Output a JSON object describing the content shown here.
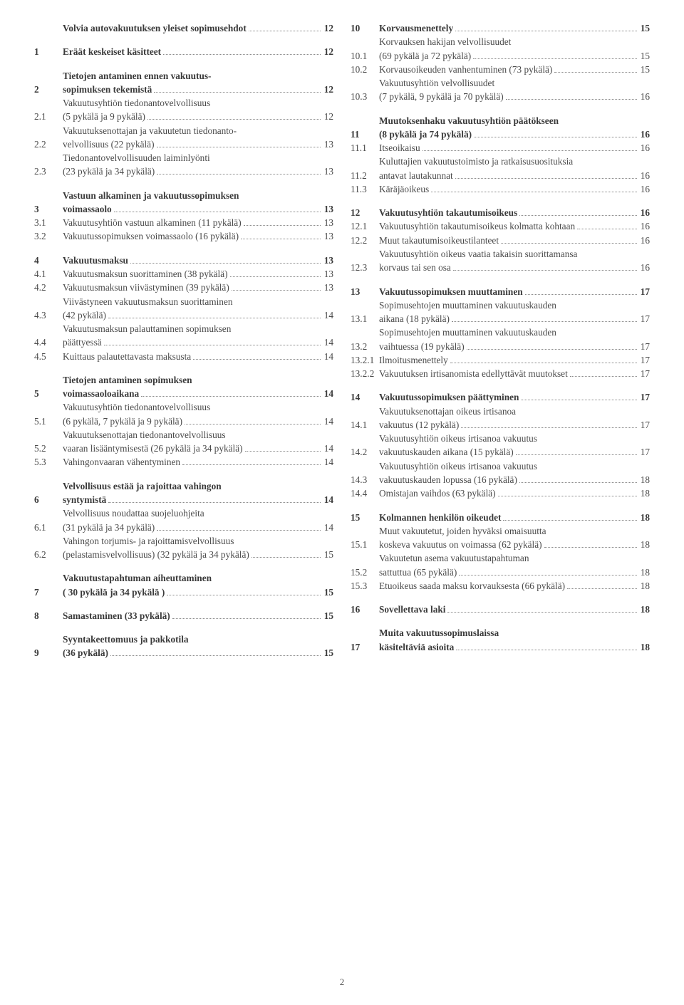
{
  "page_number": "2",
  "colors": {
    "text": "#4a4a4a",
    "leader": "#8a8a8a",
    "bg": "#ffffff"
  },
  "left": [
    {
      "type": "bold",
      "num": "",
      "lines": [
        "Volvia autovakuutuksen yleiset sopimusehdot"
      ],
      "page": "12"
    },
    {
      "type": "gap"
    },
    {
      "type": "bold",
      "num": "1",
      "lines": [
        "Eräät keskeiset käsitteet"
      ],
      "page": "12"
    },
    {
      "type": "gap"
    },
    {
      "type": "bold",
      "num": "2",
      "lines": [
        "Tietojen antaminen ennen vakuutus-",
        "sopimuksen tekemistä"
      ],
      "page": "12"
    },
    {
      "type": "norm",
      "num": "2.1",
      "lines": [
        "Vakuutusyhtiön tiedonantovelvollisuus",
        "(5 pykälä  ja 9 pykälä)"
      ],
      "page": "12"
    },
    {
      "type": "norm",
      "num": "2.2",
      "lines": [
        "Vakuutuksenottajan ja vakuutetun tiedonanto-",
        "velvollisuus (22 pykälä)"
      ],
      "page": "13"
    },
    {
      "type": "norm",
      "num": "2.3",
      "lines": [
        "Tiedonantovelvollisuuden laiminlyönti",
        "(23 pykälä ja 34 pykälä)"
      ],
      "page": "13"
    },
    {
      "type": "gap"
    },
    {
      "type": "bold",
      "num": "3",
      "lines": [
        "Vastuun alkaminen ja vakuutussopimuksen",
        "voimassaolo"
      ],
      "page": "13"
    },
    {
      "type": "norm",
      "num": "3.1",
      "lines": [
        "Vakuutusyhtiön vastuun alkaminen (11 pykälä)"
      ],
      "page": "13"
    },
    {
      "type": "norm",
      "num": "3.2",
      "lines": [
        "Vakuutussopimuksen voimassaolo (16 pykälä)"
      ],
      "page": "13"
    },
    {
      "type": "gap"
    },
    {
      "type": "bold",
      "num": "4",
      "lines": [
        "Vakuutusmaksu"
      ],
      "page": "13"
    },
    {
      "type": "norm",
      "num": "4.1",
      "lines": [
        "Vakuutusmaksun suorittaminen (38 pykälä)"
      ],
      "page": "13"
    },
    {
      "type": "norm",
      "num": "4.2",
      "lines": [
        "Vakuutusmaksun viivästyminen (39 pykälä)"
      ],
      "page": "13"
    },
    {
      "type": "norm",
      "num": "4.3",
      "lines": [
        "Viivästyneen vakuutusmaksun suorittaminen",
        "(42 pykälä)"
      ],
      "page": "14"
    },
    {
      "type": "norm",
      "num": "4.4",
      "lines": [
        "Vakuutusmaksun palauttaminen sopimuksen",
        "päättyessä"
      ],
      "page": "14"
    },
    {
      "type": "norm",
      "num": "4.5",
      "lines": [
        "Kuittaus palautettavasta maksusta"
      ],
      "page": "14"
    },
    {
      "type": "gap"
    },
    {
      "type": "bold",
      "num": "5",
      "lines": [
        "Tietojen antaminen sopimuksen",
        "voimassaoloaikana"
      ],
      "page": "14"
    },
    {
      "type": "norm",
      "num": "5.1",
      "lines": [
        "Vakuutusyhtiön tiedonantovelvollisuus",
        "(6 pykälä, 7 pykälä ja 9 pykälä)"
      ],
      "page": "14"
    },
    {
      "type": "norm",
      "num": "5.2",
      "lines": [
        "Vakuutuksenottajan tiedonantovelvollisuus",
        "vaaran lisääntymisestä (26 pykälä ja 34 pykälä)"
      ],
      "page": "14"
    },
    {
      "type": "norm",
      "num": "5.3",
      "lines": [
        "Vahingonvaaran vähentyminen"
      ],
      "page": "14"
    },
    {
      "type": "gap"
    },
    {
      "type": "bold",
      "num": "6",
      "lines": [
        "Velvollisuus estää ja rajoittaa vahingon",
        "syntymistä"
      ],
      "page": "14"
    },
    {
      "type": "norm",
      "num": "6.1",
      "lines": [
        "Velvollisuus noudattaa suojeluohjeita",
        "(31 pykälä ja 34 pykälä)"
      ],
      "page": "14"
    },
    {
      "type": "norm",
      "num": "6.2",
      "lines": [
        "Vahingon torjumis- ja rajoittamisvelvollisuus",
        "(pelastamisvelvollisuus) (32 pykälä ja 34 pykälä)"
      ],
      "page": "15"
    },
    {
      "type": "gap"
    },
    {
      "type": "bold",
      "num": "7",
      "lines": [
        "Vakuutustapahtuman aiheuttaminen",
        "( 30 pykälä ja 34 pykälä )"
      ],
      "page": "15"
    },
    {
      "type": "gap"
    },
    {
      "type": "bold",
      "num": "8",
      "lines": [
        "Samastaminen (33 pykälä)"
      ],
      "page": "15"
    },
    {
      "type": "gap"
    },
    {
      "type": "bold",
      "num": "9",
      "lines": [
        "Syyntakeettomuus ja pakkotila",
        "(36 pykälä)"
      ],
      "page": "15"
    }
  ],
  "right": [
    {
      "type": "bold",
      "num": "10",
      "lines": [
        "Korvausmenettely"
      ],
      "page": "15"
    },
    {
      "type": "norm",
      "num": "10.1",
      "lines": [
        "Korvauksen hakijan velvollisuudet",
        "(69 pykälä ja 72 pykälä)"
      ],
      "page": "15"
    },
    {
      "type": "norm",
      "num": "10.2",
      "lines": [
        "Korvausoikeuden vanhentuminen (73 pykälä)"
      ],
      "page": "15"
    },
    {
      "type": "norm",
      "num": "10.3",
      "lines": [
        "Vakuutusyhtiön velvollisuudet",
        "(7 pykälä, 9 pykälä ja 70 pykälä)"
      ],
      "page": "16"
    },
    {
      "type": "gap"
    },
    {
      "type": "bold",
      "num": "11",
      "lines": [
        "Muutoksenhaku vakuutusyhtiön päätökseen",
        "(8 pykälä ja 74 pykälä)"
      ],
      "page": "16"
    },
    {
      "type": "norm",
      "num": "11.1",
      "lines": [
        "Itseoikaisu"
      ],
      "page": "16"
    },
    {
      "type": "norm",
      "num": "11.2",
      "lines": [
        "Kuluttajien vakuutustoimisto ja ratkaisusuosituksia",
        "antavat lautakunnat"
      ],
      "page": "16"
    },
    {
      "type": "norm",
      "num": "11.3",
      "lines": [
        "Käräjäoikeus"
      ],
      "page": "16"
    },
    {
      "type": "gap"
    },
    {
      "type": "bold",
      "num": "12",
      "lines": [
        "Vakuutusyhtiön takautumisoikeus"
      ],
      "page": "16"
    },
    {
      "type": "norm",
      "num": "12.1",
      "lines": [
        "Vakuutusyhtiön takautumisoikeus kolmatta kohtaan"
      ],
      "page": "16"
    },
    {
      "type": "norm",
      "num": "12.2",
      "lines": [
        "Muut takautumisoikeustilanteet"
      ],
      "page": "16"
    },
    {
      "type": "norm",
      "num": "12.3",
      "lines": [
        "Vakuutusyhtiön oikeus vaatia takaisin suorittamansa",
        "korvaus tai sen osa"
      ],
      "page": "16"
    },
    {
      "type": "gap"
    },
    {
      "type": "bold",
      "num": "13",
      "lines": [
        "Vakuutussopimuksen muuttaminen"
      ],
      "page": "17"
    },
    {
      "type": "norm",
      "num": "13.1",
      "lines": [
        "Sopimusehtojen muuttaminen vakuutuskauden",
        "aikana (18 pykälä)"
      ],
      "page": "17"
    },
    {
      "type": "norm",
      "num": "13.2",
      "lines": [
        "Sopimusehtojen muuttaminen vakuutuskauden",
        "vaihtuessa (19 pykälä)"
      ],
      "page": "17"
    },
    {
      "type": "norm",
      "num": "13.2.1",
      "lines": [
        "Ilmoitusmenettely"
      ],
      "page": "17"
    },
    {
      "type": "norm",
      "num": "13.2.2",
      "lines": [
        "Vakuutuksen irtisanomista edellyttävät muutokset"
      ],
      "page": "17"
    },
    {
      "type": "gap"
    },
    {
      "type": "bold",
      "num": "14",
      "lines": [
        "Vakuutussopimuksen päättyminen"
      ],
      "page": "17"
    },
    {
      "type": "norm",
      "num": "14.1",
      "lines": [
        "Vakuutuksenottajan oikeus irtisanoa",
        "vakuutus  (12 pykälä)"
      ],
      "page": "17"
    },
    {
      "type": "norm",
      "num": "14.2",
      "lines": [
        "Vakuutusyhtiön oikeus irtisanoa vakuutus",
        "vakuutuskauden aikana (15 pykälä)"
      ],
      "page": "17"
    },
    {
      "type": "norm",
      "num": "14.3",
      "lines": [
        "Vakuutusyhtiön oikeus irtisanoa vakuutus",
        "vakuutuskauden lopussa (16 pykälä)"
      ],
      "page": "18"
    },
    {
      "type": "norm",
      "num": "14.4",
      "lines": [
        "Omistajan vaihdos (63 pykälä)"
      ],
      "page": "18"
    },
    {
      "type": "gap"
    },
    {
      "type": "bold",
      "num": "15",
      "lines": [
        "Kolmannen henkilön oikeudet"
      ],
      "page": "18"
    },
    {
      "type": "norm",
      "num": "15.1",
      "lines": [
        "Muut vakuutetut, joiden hyväksi omaisuutta",
        "koskeva vakuutus on voimassa (62 pykälä)"
      ],
      "page": "18"
    },
    {
      "type": "norm",
      "num": "15.2",
      "lines": [
        "Vakuutetun asema vakuutustapahtuman",
        "sattuttua (65 pykälä)"
      ],
      "page": "18"
    },
    {
      "type": "norm",
      "num": "15.3",
      "lines": [
        "Etuoikeus saada maksu korvauksesta (66 pykälä)"
      ],
      "page": "18"
    },
    {
      "type": "gap"
    },
    {
      "type": "bold",
      "num": "16",
      "lines": [
        "Sovellettava laki"
      ],
      "page": "18"
    },
    {
      "type": "gap"
    },
    {
      "type": "bold",
      "num": "17",
      "lines": [
        "Muita vakuutussopimuslaissa",
        "käsiteltäviä asioita"
      ],
      "page": "18"
    }
  ]
}
